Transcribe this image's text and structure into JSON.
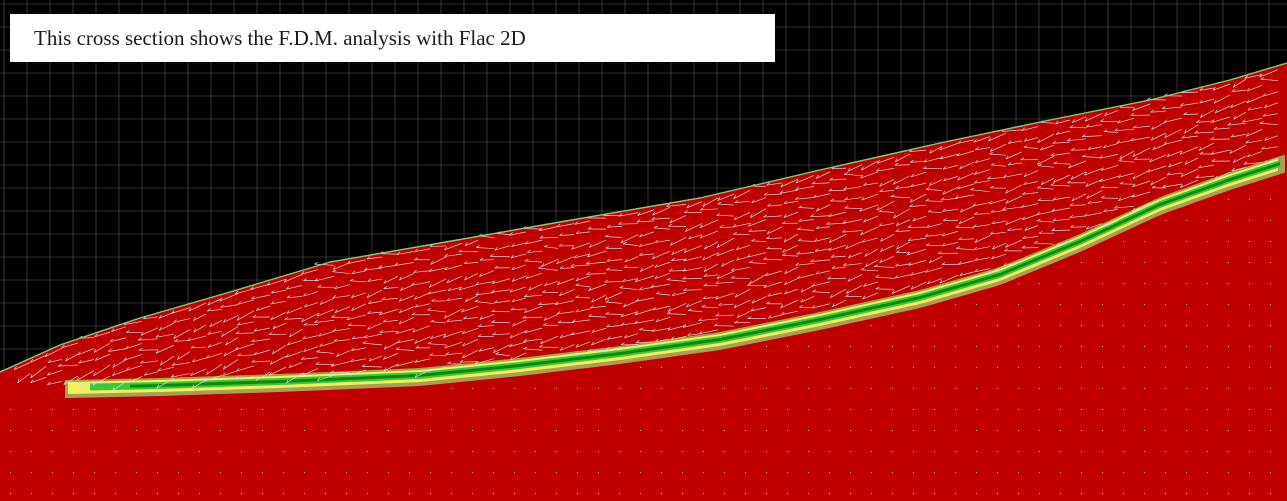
{
  "caption": {
    "text": "This cross section shows the F.D.M. analysis with Flac 2D"
  },
  "colors": {
    "background": "#000000",
    "grid": "#5a5a5a",
    "material": "#c00000",
    "failure_band_yellow": "#f0f060",
    "failure_band_green": "#3cc83c",
    "failure_band_dark_green": "#0a8a0a",
    "failure_band_olive": "#a8a050",
    "vectors": "#d8d8e8",
    "surface_line": "#7cd27c"
  }
}
